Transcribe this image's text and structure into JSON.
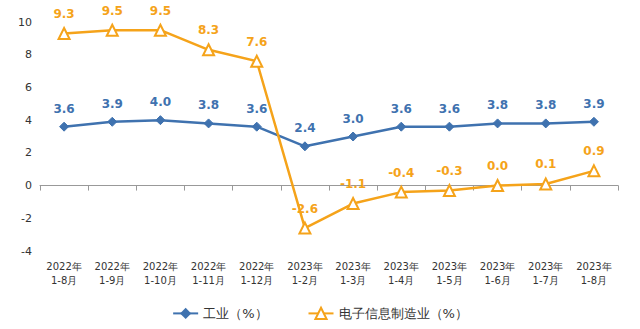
{
  "chart_data": {
    "type": "line",
    "categories": [
      "2022年\n1-8月",
      "2022年\n1-9月",
      "2022年\n1-10月",
      "2022年\n1-11月",
      "2022年\n1-12月",
      "2023年\n1-2月",
      "2023年\n1-3月",
      "2023年\n1-4月",
      "2023年\n1-5月",
      "2023年\n1-6月",
      "2023年\n1-7月",
      "2023年\n1-8月"
    ],
    "series": [
      {
        "name": "工业（%）",
        "color": "#3f72af",
        "marker": "diamond",
        "values": [
          3.6,
          3.9,
          4.0,
          3.8,
          3.6,
          2.4,
          3.0,
          3.6,
          3.6,
          3.8,
          3.8,
          3.9
        ],
        "value_labels": [
          "3.6",
          "3.9",
          "4.0",
          "3.8",
          "3.6",
          "2.4",
          "3.0",
          "3.6",
          "3.6",
          "3.8",
          "3.8",
          "3.9"
        ]
      },
      {
        "name": "电子信息制造业（%）",
        "color": "#f5a31a",
        "marker": "triangle",
        "values": [
          9.3,
          9.5,
          9.5,
          8.3,
          7.6,
          -2.6,
          -1.1,
          -0.4,
          -0.3,
          0.0,
          0.1,
          0.9
        ],
        "value_labels": [
          "9.3",
          "9.5",
          "9.5",
          "8.3",
          "7.6",
          "-2.6",
          "-1.1",
          "-0.4",
          "-0.3",
          "0.0",
          "0.1",
          "0.9"
        ]
      }
    ],
    "ylim": [
      -4,
      10
    ],
    "yticks": [
      -4,
      -2,
      0,
      2,
      4,
      6,
      8,
      10
    ],
    "grid": false,
    "data_labels": true,
    "legend": "bottom"
  }
}
